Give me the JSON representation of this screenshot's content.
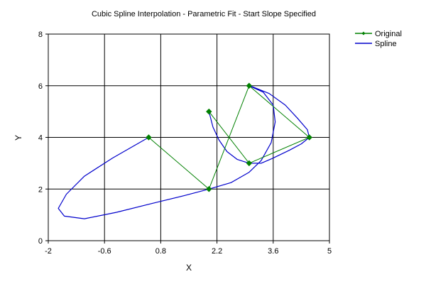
{
  "chart_data": {
    "type": "line",
    "title": "Cubic Spline Interpolation - Parametric Fit - Start Slope Specified",
    "xlabel": "X",
    "ylabel": "Y",
    "xlim": [
      -2,
      5
    ],
    "ylim": [
      0,
      8
    ],
    "x_ticks": [
      -2,
      -0.6,
      0.8,
      2.2,
      3.6,
      5
    ],
    "y_ticks": [
      0,
      2,
      4,
      6,
      8
    ],
    "grid": true,
    "legend_position": "top-right",
    "series": [
      {
        "name": "Original",
        "color": "#008000",
        "marker": "diamond",
        "points": [
          [
            2,
            5
          ],
          [
            3,
            3
          ],
          [
            4.5,
            4
          ],
          [
            3,
            6
          ],
          [
            2,
            2
          ],
          [
            0.5,
            4
          ]
        ]
      },
      {
        "name": "Spline",
        "color": "#0000cc",
        "points": [
          [
            2,
            5
          ],
          [
            2.1,
            4.4
          ],
          [
            2.25,
            3.9
          ],
          [
            2.45,
            3.45
          ],
          [
            2.7,
            3.15
          ],
          [
            3,
            3
          ],
          [
            3.3,
            3.0
          ],
          [
            3.6,
            3.2
          ],
          [
            4.0,
            3.5
          ],
          [
            4.3,
            3.75
          ],
          [
            4.5,
            4
          ],
          [
            4.45,
            4.3
          ],
          [
            4.2,
            4.75
          ],
          [
            3.9,
            5.25
          ],
          [
            3.5,
            5.7
          ],
          [
            3.1,
            5.95
          ],
          [
            3,
            6
          ],
          [
            3.35,
            5.75
          ],
          [
            3.6,
            5.25
          ],
          [
            3.65,
            4.6
          ],
          [
            3.55,
            3.8
          ],
          [
            3.3,
            3.1
          ],
          [
            3.0,
            2.65
          ],
          [
            2.55,
            2.25
          ],
          [
            2,
            2
          ],
          [
            1.4,
            1.75
          ],
          [
            0.6,
            1.45
          ],
          [
            -0.3,
            1.1
          ],
          [
            -1.1,
            0.85
          ],
          [
            -1.6,
            0.95
          ],
          [
            -1.75,
            1.25
          ],
          [
            -1.55,
            1.8
          ],
          [
            -1.1,
            2.5
          ],
          [
            -0.4,
            3.2
          ],
          [
            0.5,
            4
          ]
        ]
      }
    ]
  }
}
